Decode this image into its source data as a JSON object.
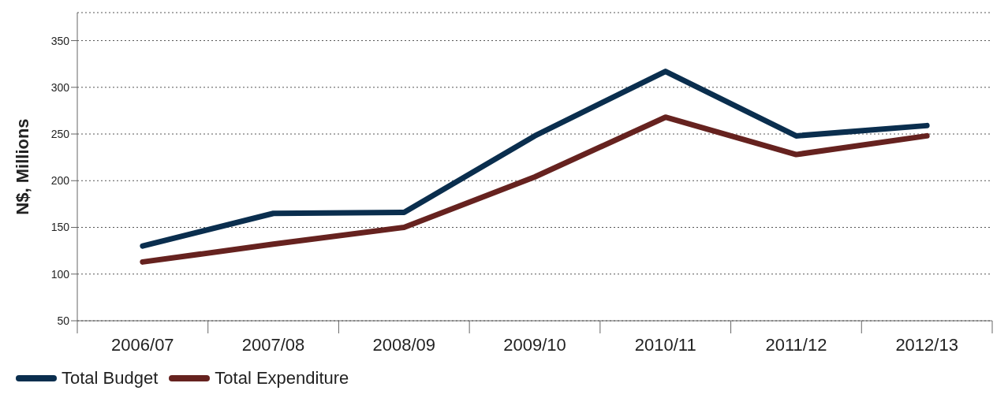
{
  "chart_data": {
    "type": "line",
    "ylabel": "N$, Millions",
    "categories": [
      "2006/07",
      "2007/08",
      "2008/09",
      "2009/10",
      "2010/11",
      "2011/12",
      "2012/13"
    ],
    "series": [
      {
        "name": "Total Budget",
        "color": "#0a2e4e",
        "values": [
          130,
          165,
          166,
          248,
          317,
          248,
          259
        ]
      },
      {
        "name": "Total Expenditure",
        "color": "#66221f",
        "values": [
          113,
          132,
          150,
          204,
          268,
          228,
          248
        ]
      }
    ],
    "ylim": [
      50,
      380
    ],
    "yticks": [
      50,
      100,
      150,
      200,
      250,
      300,
      350
    ],
    "grid": "y",
    "legend": "bottom left",
    "marker": "none",
    "line_style": "solid"
  }
}
